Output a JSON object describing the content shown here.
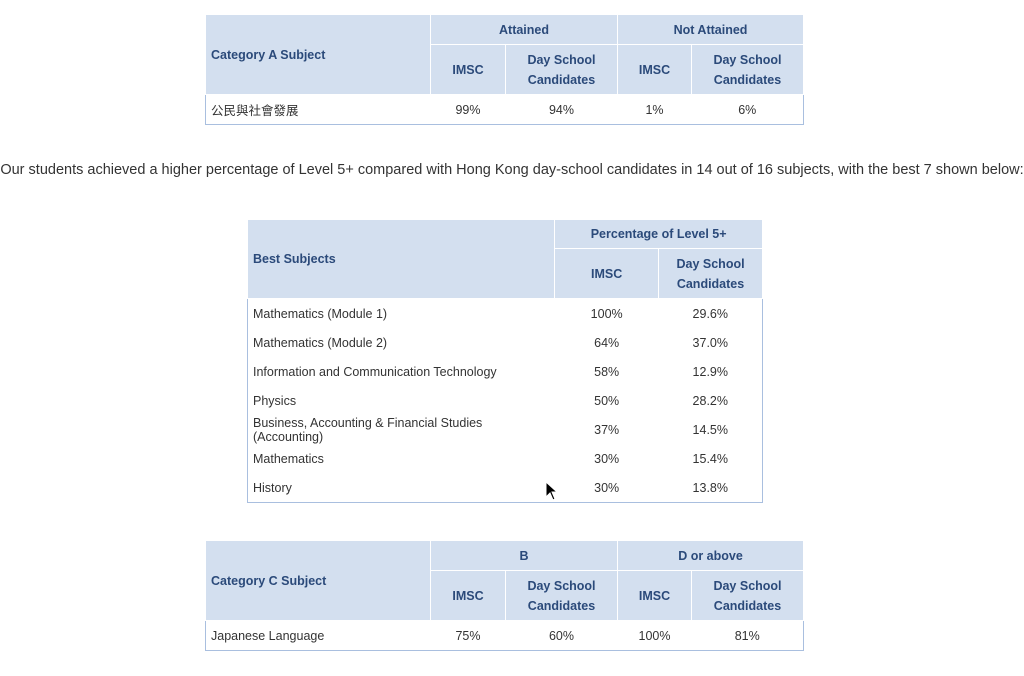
{
  "table_a": {
    "subject_header": "Category A Subject",
    "group1": "Attained",
    "group2": "Not Attained",
    "col_imsc": "IMSC",
    "col_day": "Day School Candidates",
    "rows": [
      {
        "subject": "公民與社會發展",
        "v": [
          "99%",
          "94%",
          "1%",
          "6%"
        ]
      }
    ]
  },
  "paragraph": "Our students achieved a higher percentage of Level 5+ compared with Hong Kong day-school candidates in 14 out of 16 subjects, with the best 7 shown below:",
  "table_best": {
    "subject_header": "Best Subjects",
    "group": "Percentage of Level 5+",
    "col_imsc": "IMSC",
    "col_day": "Day School Candidates",
    "rows": [
      {
        "subject": "Mathematics (Module 1)",
        "imsc": "100%",
        "day": "29.6%"
      },
      {
        "subject": "Mathematics (Module 2)",
        "imsc": "64%",
        "day": "37.0%"
      },
      {
        "subject": "Information and Communication Technology",
        "imsc": "58%",
        "day": "12.9%"
      },
      {
        "subject": "Physics",
        "imsc": "50%",
        "day": "28.2%"
      },
      {
        "subject": "Business, Accounting & Financial Studies (Accounting)",
        "imsc": "37%",
        "day": "14.5%"
      },
      {
        "subject": "Mathematics",
        "imsc": "30%",
        "day": "15.4%"
      },
      {
        "subject": "History",
        "imsc": "30%",
        "day": "13.8%"
      }
    ]
  },
  "table_c": {
    "subject_header": "Category C Subject",
    "group1": "B",
    "group2": "D or above",
    "col_imsc": "IMSC",
    "col_day": "Day School Candidates",
    "rows": [
      {
        "subject": "Japanese Language",
        "v": [
          "75%",
          "60%",
          "100%",
          "81%"
        ]
      }
    ]
  },
  "colors": {
    "header_bg": "#d3dfef",
    "header_text": "#2b4a7a",
    "border": "#a9bfdf"
  }
}
